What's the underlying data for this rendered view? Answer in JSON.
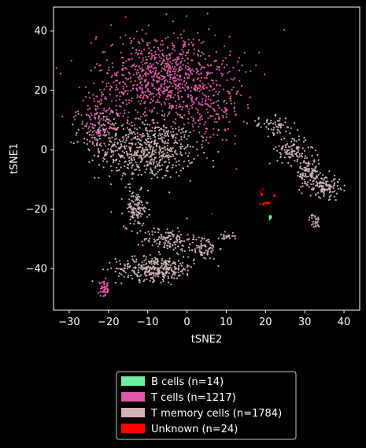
{
  "chart_data": {
    "type": "scatter",
    "title": "",
    "xlabel": "tSNE2",
    "ylabel": "tSNE1",
    "xlim": [
      -34,
      44
    ],
    "ylim": [
      -54,
      48
    ],
    "xticks": [
      -30,
      -20,
      -10,
      0,
      10,
      20,
      30,
      40
    ],
    "yticks": [
      -40,
      -20,
      0,
      20,
      40
    ],
    "xtick_labels": [
      "−30",
      "−20",
      "−10",
      "0",
      "10",
      "20",
      "30",
      "40"
    ],
    "ytick_labels": [
      "−40",
      "−20",
      "0",
      "20",
      "40"
    ],
    "grid": false,
    "legend_position": "bottom-center, below plot",
    "background": "#000000",
    "series": [
      {
        "name": "B cells (n=14)",
        "color": "#6ef0a0",
        "regions": [
          {
            "cx": 21.2,
            "cy": -22.6,
            "rx": 0.3,
            "ry": 0.8,
            "n": 14
          }
        ]
      },
      {
        "name": "T cells (n=1217)",
        "color": "#e058a8",
        "regions": [
          {
            "cx": -6,
            "cy": 24,
            "rx": 17,
            "ry": 15,
            "n": 900
          },
          {
            "cx": -22,
            "cy": 10,
            "rx": 6,
            "ry": 10,
            "n": 120
          },
          {
            "cx": 6,
            "cy": 14,
            "rx": 8,
            "ry": 12,
            "n": 150
          },
          {
            "cx": -21,
            "cy": -47,
            "rx": 1.5,
            "ry": 2.5,
            "n": 47
          }
        ]
      },
      {
        "name": "T memory cells (n=1784)",
        "color": "#cfb3b3",
        "regions": [
          {
            "cx": -10,
            "cy": 0,
            "rx": 12,
            "ry": 10,
            "n": 600
          },
          {
            "cx": -22,
            "cy": 6,
            "rx": 6,
            "ry": 8,
            "n": 90
          },
          {
            "cx": -13,
            "cy": -20,
            "rx": 3,
            "ry": 6,
            "n": 120
          },
          {
            "cx": -5,
            "cy": -30,
            "rx": 6,
            "ry": 4,
            "n": 120
          },
          {
            "cx": 4,
            "cy": -33,
            "rx": 4,
            "ry": 4,
            "n": 80
          },
          {
            "cx": -8,
            "cy": -40,
            "rx": 10,
            "ry": 4,
            "n": 330
          },
          {
            "cx": 10,
            "cy": -29,
            "rx": 2,
            "ry": 1.5,
            "n": 25
          },
          {
            "cx": 22,
            "cy": 8,
            "rx": 6,
            "ry": 3,
            "n": 60
          },
          {
            "cx": 27,
            "cy": 0,
            "rx": 4,
            "ry": 5,
            "n": 110
          },
          {
            "cx": 31,
            "cy": -8,
            "rx": 3,
            "ry": 5,
            "n": 100
          },
          {
            "cx": 35,
            "cy": -12,
            "rx": 4,
            "ry": 4,
            "n": 120
          },
          {
            "cx": 32.5,
            "cy": -24,
            "rx": 1.3,
            "ry": 2.5,
            "n": 29
          }
        ]
      },
      {
        "name": "Unknown (n=24)",
        "color": "#ff0000",
        "regions": [
          {
            "cx": 19,
            "cy": -14.5,
            "rx": 0.3,
            "ry": 1.5,
            "n": 6
          },
          {
            "cx": 20,
            "cy": -18,
            "rx": 1.2,
            "ry": 0.4,
            "n": 12
          },
          {
            "cx": 22.3,
            "cy": -15.6,
            "rx": 0.3,
            "ry": 0.4,
            "n": 5
          },
          {
            "cx": 6.4,
            "cy": -21.5,
            "rx": 0.1,
            "ry": 0.1,
            "n": 1
          }
        ]
      }
    ]
  }
}
